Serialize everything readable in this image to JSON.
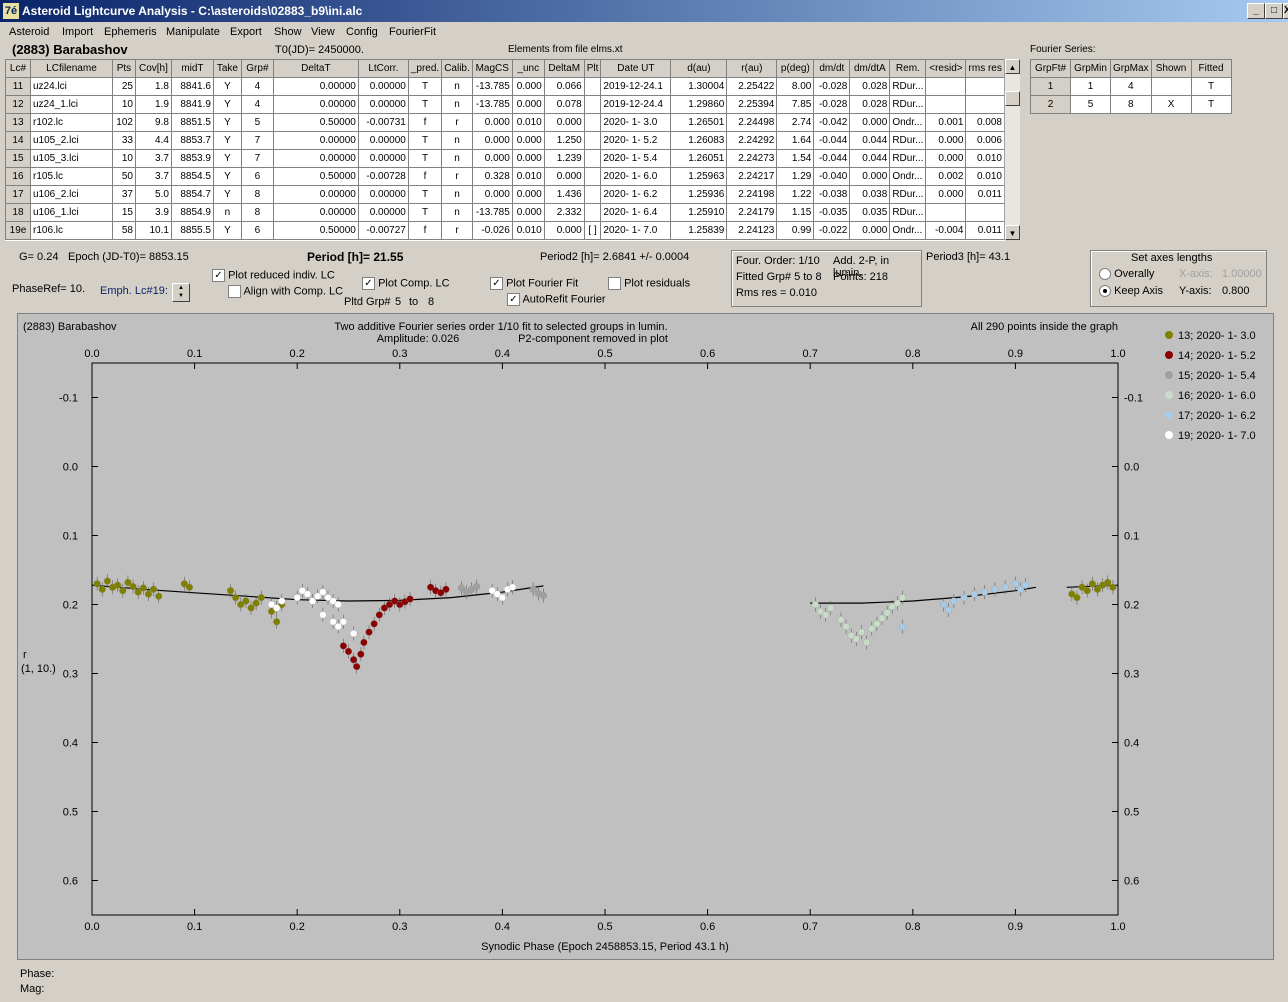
{
  "window": {
    "title": "Asteroid Lightcurve Analysis - C:\\asteroids\\02883_b9\\ini.alc",
    "icon_glyph": "7é",
    "controls": [
      "_",
      "□",
      "X"
    ]
  },
  "menu": [
    "Asteroid",
    "Import",
    "Ephemeris",
    "Manipulate",
    "Export",
    "Show",
    "View",
    "Config",
    "FourierFit"
  ],
  "header": {
    "asteroid": "(2883) Barabashov",
    "t0": "T0(JD)= 2450000.",
    "elements": "Elements from file elms.xt"
  },
  "lc_table": {
    "columns": [
      "Lc#",
      "LCfilename",
      "Pts",
      "Cov[h]",
      "midT",
      "Take",
      "Grp#",
      "DeltaT",
      "LtCorr.",
      "_pred.",
      "Calib.",
      "MagCS",
      "_unc",
      "DeltaM",
      "Plt",
      "Date UT",
      "d(au)",
      "r(au)",
      "p(deg)",
      "dm/dt",
      "dm/dtA",
      "Rem.",
      "<resid>",
      "rms res"
    ],
    "rows": [
      [
        "11",
        "uz24.lci",
        "25",
        "1.8",
        "8841.6",
        "Y",
        "4",
        "0.00000",
        "0.00000",
        "T",
        "n",
        "-13.785",
        "0.000",
        "0.066",
        "",
        "2019-12-24.1",
        "1.30004",
        "2.25422",
        "8.00",
        "-0.028",
        "0.028",
        "RDur...",
        "",
        ""
      ],
      [
        "12",
        "uz24_1.lci",
        "10",
        "1.9",
        "8841.9",
        "Y",
        "4",
        "0.00000",
        "0.00000",
        "T",
        "n",
        "-13.785",
        "0.000",
        "0.078",
        "",
        "2019-12-24.4",
        "1.29860",
        "2.25394",
        "7.85",
        "-0.028",
        "0.028",
        "RDur...",
        "",
        ""
      ],
      [
        "13",
        "r102.lc",
        "102",
        "9.8",
        "8851.5",
        "Y",
        "5",
        "0.50000",
        "-0.00731",
        "f",
        "r",
        "0.000",
        "0.010",
        "0.000",
        "",
        "2020- 1- 3.0",
        "1.26501",
        "2.24498",
        "2.74",
        "-0.042",
        "0.000",
        "Ondr...",
        "0.001",
        "0.008"
      ],
      [
        "14",
        "u105_2.lci",
        "33",
        "4.4",
        "8853.7",
        "Y",
        "7",
        "0.00000",
        "0.00000",
        "T",
        "n",
        "0.000",
        "0.000",
        "1.250",
        "",
        "2020- 1- 5.2",
        "1.26083",
        "2.24292",
        "1.64",
        "-0.044",
        "0.044",
        "RDur...",
        "0.000",
        "0.006"
      ],
      [
        "15",
        "u105_3.lci",
        "10",
        "3.7",
        "8853.9",
        "Y",
        "7",
        "0.00000",
        "0.00000",
        "T",
        "n",
        "0.000",
        "0.000",
        "1.239",
        "",
        "2020- 1- 5.4",
        "1.26051",
        "2.24273",
        "1.54",
        "-0.044",
        "0.044",
        "RDur...",
        "0.000",
        "0.010"
      ],
      [
        "16",
        "r105.lc",
        "50",
        "3.7",
        "8854.5",
        "Y",
        "6",
        "0.50000",
        "-0.00728",
        "f",
        "r",
        "0.328",
        "0.010",
        "0.000",
        "",
        "2020- 1- 6.0",
        "1.25963",
        "2.24217",
        "1.29",
        "-0.040",
        "0.000",
        "Ondr...",
        "0.002",
        "0.010"
      ],
      [
        "17",
        "u106_2.lci",
        "37",
        "5.0",
        "8854.7",
        "Y",
        "8",
        "0.00000",
        "0.00000",
        "T",
        "n",
        "0.000",
        "0.000",
        "1.436",
        "",
        "2020- 1- 6.2",
        "1.25936",
        "2.24198",
        "1.22",
        "-0.038",
        "0.038",
        "RDur...",
        "0.000",
        "0.011"
      ],
      [
        "18",
        "u106_1.lci",
        "15",
        "3.9",
        "8854.9",
        "n",
        "8",
        "0.00000",
        "0.00000",
        "T",
        "n",
        "-13.785",
        "0.000",
        "2.332",
        "",
        "2020- 1- 6.4",
        "1.25910",
        "2.24179",
        "1.15",
        "-0.035",
        "0.035",
        "RDur...",
        "",
        ""
      ],
      [
        "19e",
        "r106.lc",
        "58",
        "10.1",
        "8855.5",
        "Y",
        "6",
        "0.50000",
        "-0.00727",
        "f",
        "r",
        "-0.026",
        "0.010",
        "0.000",
        "[ ]",
        "2020- 1- 7.0",
        "1.25839",
        "2.24123",
        "0.99",
        "-0.022",
        "0.000",
        "Ondr...",
        "-0.004",
        "0.011"
      ]
    ]
  },
  "fourier_series": {
    "label": "Fourier Series:",
    "columns": [
      "GrpFt#",
      "GrpMin",
      "GrpMax",
      "Shown",
      "Fitted"
    ],
    "rows": [
      [
        "1",
        "1",
        "4",
        "",
        "T"
      ],
      [
        "2",
        "5",
        "8",
        "X",
        "T"
      ]
    ]
  },
  "info": {
    "g": "G= 0.24",
    "epoch": "Epoch (JD-T0)= 8853.15",
    "period": "Period [h]= 21.55",
    "period2": "Period2 [h]= 2.6841 +/- 0.0004",
    "period3": "Period3 [h]= 43.1",
    "phase_ref": "PhaseRef= 10.",
    "emph_lc": "Emph. Lc#19:",
    "pltd_grp_label": "Pltd Grp#",
    "pltd_from": "5",
    "pltd_to_label": "to",
    "pltd_to": "8"
  },
  "checkboxes": {
    "plot_reduced": {
      "label": "Plot reduced indiv. LC",
      "checked": true
    },
    "align_comp": {
      "label": "Align with Comp. LC",
      "checked": false
    },
    "plot_comp": {
      "label": "Plot Comp. LC",
      "checked": true
    },
    "plot_fourier": {
      "label": "Plot Fourier Fit",
      "checked": true
    },
    "autorefit": {
      "label": "AutoRefit Fourier",
      "checked": true
    },
    "plot_residuals": {
      "label": "Plot residuals",
      "checked": false
    }
  },
  "fourier_box": {
    "order": "Four. Order:  1/10",
    "add": "Add. 2-P, in lumin.",
    "fitted": "Fitted Grp# 5 to 8",
    "points": "Points: 218",
    "rms": "Rms res     = 0.010"
  },
  "axes_box": {
    "title": "Set axes lengths",
    "overally": "Overally",
    "keep_axis": "Keep Axis",
    "selected": "keep_axis",
    "xaxis_label": "X-axis:",
    "xaxis_value": "1.00000",
    "yaxis_label": "Y-axis:",
    "yaxis_value": "0.800"
  },
  "footer": {
    "phase": "Phase:",
    "mag": "Mag:"
  },
  "colors": {
    "grp13": "#808000",
    "grp14": "#8b0000",
    "grp15": "#a0a0a0",
    "grp16": "#c8dcc8",
    "grp17": "#a8cce8",
    "grp19": "#ffffff",
    "plot_bg": "#c0c0c0",
    "title_blue": "#0a246a"
  },
  "chart_data": {
    "type": "scatter",
    "title_left": "(2883) Barabashov",
    "title_center": "Two additive Fourier series order 1/10 fit to selected groups in lumin.",
    "subtitle_amp": "Amplitude: 0.026",
    "subtitle_p2": "P2-component removed in plot",
    "title_right": "All 290 points inside the graph",
    "xlabel": "Synodic Phase (Epoch 2458853.15, Period 43.1 h)",
    "ylabel_line1": "r",
    "ylabel_line2": "(1, 10.)",
    "xlim": [
      0,
      1
    ],
    "ylim": [
      -0.15,
      0.65
    ],
    "y_inverted": true,
    "x_ticks": [
      "0.0",
      "0.1",
      "0.2",
      "0.3",
      "0.4",
      "0.5",
      "0.6",
      "0.7",
      "0.8",
      "0.9",
      "1.0"
    ],
    "y_ticks": [
      -0.1,
      0.0,
      0.1,
      0.2,
      0.3,
      0.4,
      0.5,
      0.6
    ],
    "y_tick_labels": [
      "-0.1",
      "0.0",
      "0.1",
      "0.2",
      "0.3",
      "0.4",
      "0.5",
      "0.6"
    ],
    "series": [
      {
        "name": "13; 2020- 1- 3.0",
        "color": "#808000",
        "points": [
          [
            0.005,
            0.17
          ],
          [
            0.01,
            0.178
          ],
          [
            0.015,
            0.166
          ],
          [
            0.02,
            0.175
          ],
          [
            0.025,
            0.172
          ],
          [
            0.03,
            0.18
          ],
          [
            0.035,
            0.168
          ],
          [
            0.04,
            0.174
          ],
          [
            0.045,
            0.182
          ],
          [
            0.05,
            0.176
          ],
          [
            0.055,
            0.185
          ],
          [
            0.06,
            0.178
          ],
          [
            0.065,
            0.188
          ],
          [
            0.09,
            0.17
          ],
          [
            0.095,
            0.175
          ],
          [
            0.135,
            0.18
          ],
          [
            0.14,
            0.19
          ],
          [
            0.145,
            0.2
          ],
          [
            0.15,
            0.195
          ],
          [
            0.155,
            0.205
          ],
          [
            0.16,
            0.198
          ],
          [
            0.165,
            0.19
          ],
          [
            0.175,
            0.21
          ],
          [
            0.18,
            0.225
          ],
          [
            0.185,
            0.2
          ],
          [
            0.955,
            0.185
          ],
          [
            0.96,
            0.19
          ],
          [
            0.965,
            0.175
          ],
          [
            0.97,
            0.18
          ],
          [
            0.975,
            0.17
          ],
          [
            0.98,
            0.178
          ],
          [
            0.985,
            0.172
          ],
          [
            0.99,
            0.168
          ],
          [
            0.995,
            0.175
          ]
        ]
      },
      {
        "name": "14; 2020- 1- 5.2",
        "color": "#8b0000",
        "points": [
          [
            0.245,
            0.26
          ],
          [
            0.25,
            0.268
          ],
          [
            0.255,
            0.28
          ],
          [
            0.258,
            0.29
          ],
          [
            0.262,
            0.272
          ],
          [
            0.265,
            0.255
          ],
          [
            0.27,
            0.24
          ],
          [
            0.275,
            0.228
          ],
          [
            0.28,
            0.215
          ],
          [
            0.285,
            0.205
          ],
          [
            0.29,
            0.2
          ],
          [
            0.295,
            0.195
          ],
          [
            0.3,
            0.2
          ],
          [
            0.305,
            0.196
          ],
          [
            0.31,
            0.192
          ],
          [
            0.33,
            0.175
          ],
          [
            0.335,
            0.18
          ],
          [
            0.34,
            0.183
          ],
          [
            0.345,
            0.178
          ]
        ]
      },
      {
        "name": "15; 2020- 1- 5.4",
        "color": "#a0a0a0",
        "points": [
          [
            0.36,
            0.176
          ],
          [
            0.365,
            0.182
          ],
          [
            0.37,
            0.178
          ],
          [
            0.375,
            0.174
          ],
          [
            0.43,
            0.178
          ],
          [
            0.435,
            0.184
          ],
          [
            0.44,
            0.187
          ]
        ]
      },
      {
        "name": "16; 2020- 1- 6.0",
        "color": "#c8dcc8",
        "points": [
          [
            0.705,
            0.2
          ],
          [
            0.71,
            0.21
          ],
          [
            0.715,
            0.215
          ],
          [
            0.72,
            0.205
          ],
          [
            0.73,
            0.222
          ],
          [
            0.735,
            0.232
          ],
          [
            0.74,
            0.245
          ],
          [
            0.745,
            0.25
          ],
          [
            0.75,
            0.24
          ],
          [
            0.755,
            0.255
          ],
          [
            0.76,
            0.235
          ],
          [
            0.765,
            0.228
          ],
          [
            0.77,
            0.22
          ],
          [
            0.775,
            0.212
          ],
          [
            0.78,
            0.203
          ],
          [
            0.785,
            0.198
          ],
          [
            0.79,
            0.19
          ]
        ]
      },
      {
        "name": "17; 2020- 1- 6.2",
        "color": "#a8cce8",
        "points": [
          [
            0.83,
            0.2
          ],
          [
            0.835,
            0.208
          ],
          [
            0.84,
            0.195
          ],
          [
            0.85,
            0.19
          ],
          [
            0.86,
            0.185
          ],
          [
            0.87,
            0.182
          ],
          [
            0.88,
            0.178
          ],
          [
            0.89,
            0.175
          ],
          [
            0.9,
            0.17
          ],
          [
            0.905,
            0.178
          ],
          [
            0.91,
            0.172
          ],
          [
            0.79,
            0.232
          ]
        ]
      },
      {
        "name": "19; 2020- 1- 7.0",
        "color": "#ffffff",
        "points": [
          [
            0.2,
            0.19
          ],
          [
            0.205,
            0.18
          ],
          [
            0.21,
            0.185
          ],
          [
            0.215,
            0.195
          ],
          [
            0.22,
            0.188
          ],
          [
            0.225,
            0.182
          ],
          [
            0.23,
            0.19
          ],
          [
            0.235,
            0.195
          ],
          [
            0.24,
            0.2
          ],
          [
            0.225,
            0.215
          ],
          [
            0.235,
            0.225
          ],
          [
            0.24,
            0.232
          ],
          [
            0.245,
            0.225
          ],
          [
            0.255,
            0.242
          ],
          [
            0.175,
            0.2
          ],
          [
            0.18,
            0.205
          ],
          [
            0.185,
            0.195
          ],
          [
            0.39,
            0.18
          ],
          [
            0.395,
            0.185
          ],
          [
            0.4,
            0.19
          ],
          [
            0.405,
            0.178
          ],
          [
            0.41,
            0.175
          ]
        ]
      }
    ],
    "fit_segments": [
      {
        "x": [
          0.0,
          0.05,
          0.1,
          0.15,
          0.2,
          0.25,
          0.3,
          0.35,
          0.4,
          0.44
        ],
        "y": [
          0.172,
          0.178,
          0.183,
          0.188,
          0.193,
          0.195,
          0.194,
          0.19,
          0.182,
          0.173
        ]
      },
      {
        "x": [
          0.7,
          0.75,
          0.8,
          0.85,
          0.9,
          0.92
        ],
        "y": [
          0.198,
          0.198,
          0.195,
          0.189,
          0.18,
          0.175
        ]
      },
      {
        "x": [
          0.95,
          1.0
        ],
        "y": [
          0.175,
          0.172
        ]
      }
    ]
  }
}
